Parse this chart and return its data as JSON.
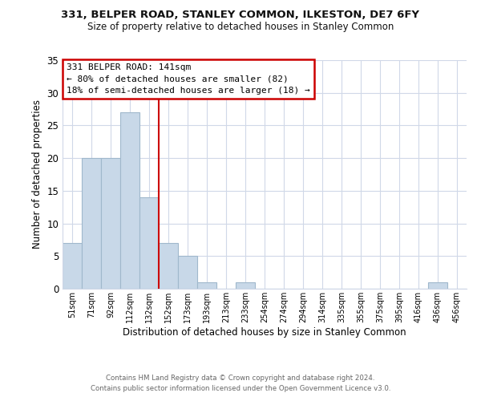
{
  "title": "331, BELPER ROAD, STANLEY COMMON, ILKESTON, DE7 6FY",
  "subtitle": "Size of property relative to detached houses in Stanley Common",
  "xlabel": "Distribution of detached houses by size in Stanley Common",
  "ylabel": "Number of detached properties",
  "bin_labels": [
    "51sqm",
    "71sqm",
    "92sqm",
    "112sqm",
    "132sqm",
    "152sqm",
    "173sqm",
    "193sqm",
    "213sqm",
    "233sqm",
    "254sqm",
    "274sqm",
    "294sqm",
    "314sqm",
    "335sqm",
    "355sqm",
    "375sqm",
    "395sqm",
    "416sqm",
    "436sqm",
    "456sqm"
  ],
  "bar_heights": [
    7,
    20,
    20,
    27,
    14,
    7,
    5,
    1,
    0,
    1,
    0,
    0,
    0,
    0,
    0,
    0,
    0,
    0,
    0,
    1,
    0
  ],
  "bar_color": "#c8d8e8",
  "bar_edge_color": "#a0b8cc",
  "vline_x": 4.5,
  "vline_color": "#cc0000",
  "annotation_title": "331 BELPER ROAD: 141sqm",
  "annotation_line1": "← 80% of detached houses are smaller (82)",
  "annotation_line2": "18% of semi-detached houses are larger (18) →",
  "annotation_box_color": "#ffffff",
  "annotation_box_edge": "#cc0000",
  "ylim": [
    0,
    35
  ],
  "yticks": [
    0,
    5,
    10,
    15,
    20,
    25,
    30,
    35
  ],
  "footer1": "Contains HM Land Registry data © Crown copyright and database right 2024.",
  "footer2": "Contains public sector information licensed under the Open Government Licence v3.0.",
  "background_color": "#ffffff",
  "grid_color": "#d0d8e8"
}
